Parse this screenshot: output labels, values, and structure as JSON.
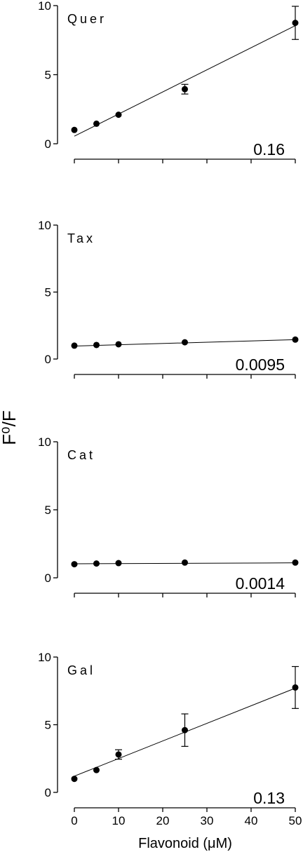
{
  "figure": {
    "ylabel": "F⁰/F",
    "xlabel": "Flavonoid (μM)"
  },
  "chart_data": [
    {
      "type": "scatter",
      "panel_label": "Quer",
      "slope_label": "0.16",
      "x": [
        0,
        5,
        10,
        25,
        50
      ],
      "y": [
        1.0,
        1.45,
        2.1,
        3.95,
        8.75
      ],
      "yerr": [
        0,
        0,
        0,
        0.35,
        1.2
      ],
      "fit": {
        "slope": 0.16,
        "intercept": 0.55
      },
      "xlim": [
        0,
        50
      ],
      "ylim": [
        0,
        10
      ],
      "yticks": [
        0,
        5,
        10
      ],
      "xticks": [
        0,
        10,
        20,
        30,
        40,
        50
      ],
      "show_xtick_labels": false,
      "grid": false
    },
    {
      "type": "scatter",
      "panel_label": "Tax",
      "slope_label": "0.0095",
      "x": [
        0,
        5,
        10,
        25,
        50
      ],
      "y": [
        1.0,
        1.05,
        1.1,
        1.25,
        1.45
      ],
      "yerr": [
        0,
        0,
        0,
        0,
        0
      ],
      "fit": {
        "slope": 0.0095,
        "intercept": 0.97
      },
      "xlim": [
        0,
        50
      ],
      "ylim": [
        0,
        10
      ],
      "yticks": [
        0,
        5,
        10
      ],
      "xticks": [
        0,
        10,
        20,
        30,
        40,
        50
      ],
      "show_xtick_labels": false,
      "grid": false
    },
    {
      "type": "scatter",
      "panel_label": "Cat",
      "slope_label": "0.0014",
      "x": [
        0,
        5,
        10,
        25,
        50
      ],
      "y": [
        1.0,
        1.05,
        1.08,
        1.12,
        1.12
      ],
      "yerr": [
        0,
        0,
        0,
        0,
        0
      ],
      "fit": {
        "slope": 0.0014,
        "intercept": 1.03
      },
      "xlim": [
        0,
        50
      ],
      "ylim": [
        0,
        10
      ],
      "yticks": [
        0,
        5,
        10
      ],
      "xticks": [
        0,
        10,
        20,
        30,
        40,
        50
      ],
      "show_xtick_labels": false,
      "grid": false
    },
    {
      "type": "scatter",
      "panel_label": "Gal",
      "slope_label": "0.13",
      "x": [
        0,
        5,
        10,
        25,
        50
      ],
      "y": [
        1.0,
        1.65,
        2.8,
        4.6,
        7.75
      ],
      "yerr": [
        0,
        0,
        0.35,
        1.2,
        1.55
      ],
      "fit": {
        "slope": 0.13,
        "intercept": 1.2
      },
      "xlim": [
        0,
        50
      ],
      "ylim": [
        0,
        10
      ],
      "yticks": [
        0,
        5,
        10
      ],
      "xticks": [
        0,
        10,
        20,
        30,
        40,
        50
      ],
      "show_xtick_labels": true,
      "grid": false
    }
  ]
}
